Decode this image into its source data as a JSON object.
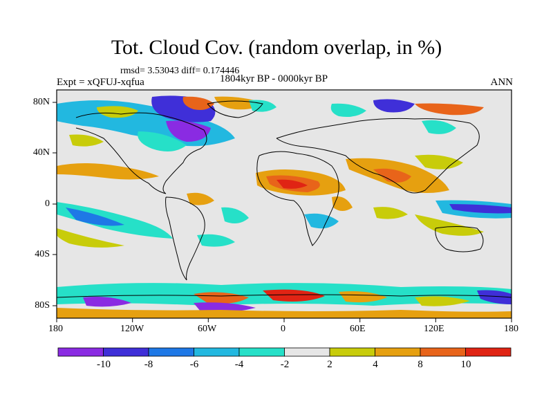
{
  "title": "Tot. Cloud Cov. (random overlap, in %)",
  "stats": "rmsd= 3.53043 diff= 0.174446",
  "period": "1804kyr BP - 0000kyr BP",
  "experiment": "Expt = xQFUJ-xqfua",
  "season": "ANN",
  "x_ticks": [
    "180",
    "120W",
    "60W",
    "0",
    "60E",
    "120E",
    "180"
  ],
  "y_ticks": [
    "80N",
    "40N",
    "0",
    "40S",
    "80S"
  ],
  "colorbar": {
    "labels": [
      "-10",
      "-8",
      "-6",
      "-4",
      "-2",
      "2",
      "4",
      "8",
      "10"
    ],
    "colors": [
      "#8a2be2",
      "#3f2fd8",
      "#1e78e6",
      "#22b8e0",
      "#26e0c8",
      "#e6e6e6",
      "#c8cc0a",
      "#e6a010",
      "#e8641a",
      "#e02414"
    ]
  },
  "palette": {
    "land": "#000000",
    "neutral": "#e6e6e6"
  }
}
